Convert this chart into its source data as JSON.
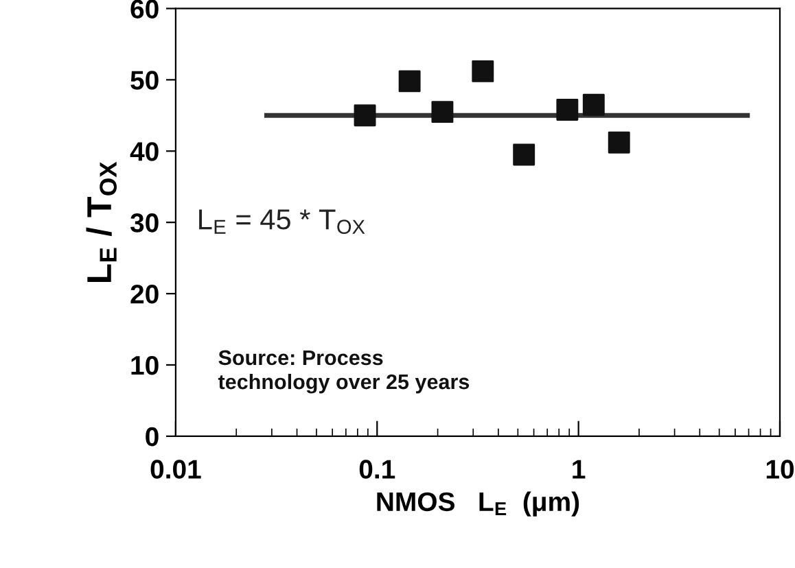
{
  "chart_data": {
    "type": "scatter",
    "xlabel": "NMOS   L$_{E}$  (μm)",
    "ylabel": "L$_{E}$ / T$_{OX}$",
    "log": "x",
    "xlim": [
      0.01,
      10
    ],
    "xticks": [
      0.01,
      0.1,
      1,
      10
    ],
    "ylim": [
      0,
      60
    ],
    "yticks": [
      0,
      10,
      20,
      30,
      40,
      50,
      60
    ],
    "grid": false,
    "legend": false,
    "marker": "square",
    "series": [
      {
        "color": "#111111",
        "x": [
          0.087,
          0.145,
          0.211,
          0.335,
          0.536,
          0.88,
          1.19,
          1.59
        ],
        "values": [
          45.0,
          49.8,
          45.5,
          51.2,
          39.5,
          45.8,
          46.5,
          41.2
        ]
      },
      {
        "type": "line",
        "color": "#333333",
        "x": [
          0.0283,
          6.9
        ],
        "values": [
          45,
          45
        ],
        "marker": "none",
        "line_style": "solid"
      }
    ],
    "annotations": [
      "L$_{E}$ = 45 * T$_{OX}$",
      "Source: Process\ntechnology over 25 years"
    ]
  }
}
